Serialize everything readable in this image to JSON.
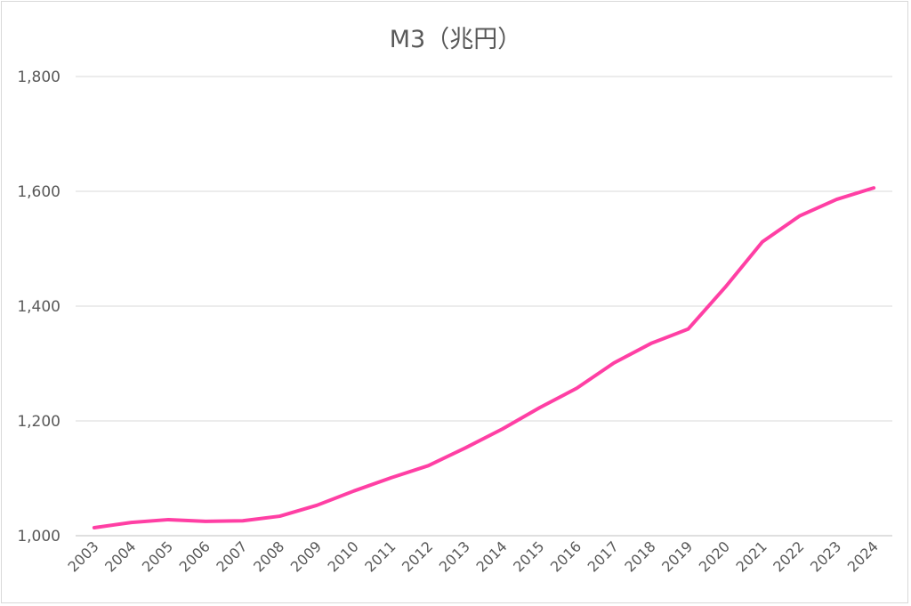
{
  "chart_data": {
    "type": "line",
    "title": "M3（兆円）",
    "categories": [
      "2003",
      "2004",
      "2005",
      "2006",
      "2007",
      "2008",
      "2009",
      "2010",
      "2011",
      "2012",
      "2013",
      "2014",
      "2015",
      "2016",
      "2017",
      "2018",
      "2019",
      "2020",
      "2021",
      "2022",
      "2023",
      "2024"
    ],
    "series": [
      {
        "values": [
          1014,
          1023,
          1028,
          1025,
          1026,
          1034,
          1053,
          1078,
          1101,
          1122,
          1153,
          1186,
          1223,
          1257,
          1301,
          1335,
          1360,
          1433,
          1512,
          1557,
          1586,
          1606
        ],
        "color": "#ff3fa4"
      }
    ],
    "ylim": [
      1000,
      1800
    ],
    "yticks": [
      1000,
      1200,
      1400,
      1600,
      1800
    ],
    "ytick_labels": [
      "1,000",
      "1,200",
      "1,400",
      "1,600",
      "1,800"
    ],
    "grid": true,
    "legend": "none"
  }
}
